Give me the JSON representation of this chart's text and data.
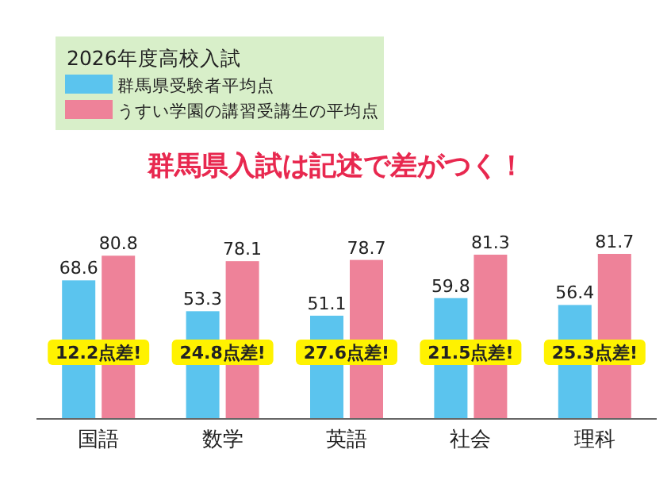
{
  "chart_data": {
    "type": "bar",
    "title": "群馬県入試は記述で差がつく！",
    "legend_title": "2026年度高校入試",
    "categories": [
      "国語",
      "数学",
      "英語",
      "社会",
      "理科"
    ],
    "series": [
      {
        "name": "群馬県受験者平均点",
        "color": "#5bc4ee",
        "values": [
          68.6,
          53.3,
          51.1,
          59.8,
          56.4
        ]
      },
      {
        "name": "うすい学園の講習受講生の平均点",
        "color": "#ee8299",
        "values": [
          80.8,
          78.1,
          78.7,
          81.3,
          81.7
        ]
      }
    ],
    "data_labels": true,
    "legend": "top left",
    "annotations": [
      {
        "text": "12.2点差!",
        "x": "国語",
        "y": 33
      },
      {
        "text": "24.8点差!",
        "x": "数学",
        "y": 33
      },
      {
        "text": "27.6点差!",
        "x": "英語",
        "y": 33
      },
      {
        "text": "21.5点差!",
        "x": "社会",
        "y": 33
      },
      {
        "text": "25.3点差!",
        "x": "理科",
        "y": 33
      }
    ]
  }
}
